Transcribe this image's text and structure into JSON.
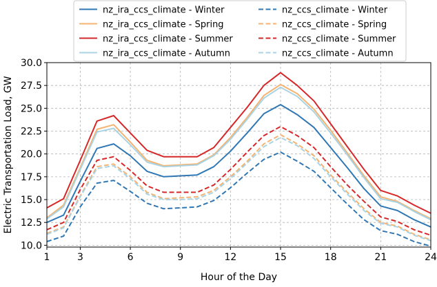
{
  "chart_data": {
    "type": "line",
    "title": "",
    "xlabel": "Hour of the Day",
    "ylabel": "Electric Transportation Load, GW",
    "xlim": [
      1,
      24
    ],
    "ylim": [
      9.8,
      30.0
    ],
    "xticks": [
      1,
      3,
      6,
      9,
      12,
      15,
      18,
      21,
      24
    ],
    "xtick_labels": [
      "1",
      "3",
      "6",
      "9",
      "12",
      "15",
      "18",
      "21",
      "24"
    ],
    "yticks": [
      10.0,
      12.5,
      15.0,
      17.5,
      20.0,
      22.5,
      25.0,
      27.5,
      30.0
    ],
    "ytick_labels": [
      "10.0",
      "12.5",
      "15.0",
      "17.5",
      "20.0",
      "22.5",
      "25.0",
      "27.5",
      "30.0"
    ],
    "grid": true,
    "grid_style": "dashed",
    "legend_position": "top-center (above plot)",
    "legend_columns": 2,
    "x": [
      1,
      2,
      3,
      4,
      5,
      6,
      7,
      8,
      9,
      10,
      11,
      12,
      13,
      14,
      15,
      16,
      17,
      18,
      19,
      20,
      21,
      22,
      23,
      24
    ],
    "series": [
      {
        "name": "nz_ira_ccs_climate - Winter",
        "color": "#2f77b4",
        "dash": "solid",
        "values": [
          12.5,
          13.3,
          17.0,
          20.6,
          21.1,
          19.8,
          18.1,
          17.5,
          17.6,
          17.7,
          18.6,
          20.3,
          22.3,
          24.4,
          25.4,
          24.3,
          22.9,
          20.7,
          18.5,
          16.2,
          14.3,
          13.8,
          12.8,
          12.0
        ]
      },
      {
        "name": "nz_ira_ccs_climate - Spring",
        "color": "#f4b370",
        "dash": "solid",
        "values": [
          13.0,
          14.4,
          18.5,
          22.7,
          23.2,
          21.3,
          19.3,
          18.7,
          18.8,
          18.9,
          19.9,
          21.8,
          24.0,
          26.4,
          27.6,
          26.6,
          24.9,
          22.6,
          20.1,
          17.6,
          15.3,
          14.8,
          13.8,
          12.9
        ]
      },
      {
        "name": "nz_ira_ccs_climate - Summer",
        "color": "#d62728",
        "dash": "solid",
        "values": [
          14.1,
          15.1,
          19.3,
          23.6,
          24.2,
          22.3,
          20.4,
          19.7,
          19.7,
          19.7,
          20.7,
          22.9,
          25.1,
          27.5,
          28.9,
          27.5,
          25.8,
          23.3,
          20.8,
          18.3,
          16.0,
          15.4,
          14.4,
          13.5
        ]
      },
      {
        "name": "nz_ira_ccs_climate - Autumn",
        "color": "#a9d3e3",
        "dash": "solid",
        "values": [
          12.9,
          14.2,
          18.3,
          22.4,
          22.8,
          21.0,
          19.1,
          18.6,
          18.7,
          18.8,
          19.8,
          21.6,
          23.8,
          26.1,
          27.3,
          26.3,
          24.6,
          22.3,
          19.9,
          17.4,
          15.1,
          14.7,
          13.7,
          12.8
        ]
      },
      {
        "name": "nz_ccs_climate - Winter",
        "color": "#2f77b4",
        "dash": "dashed",
        "values": [
          10.4,
          11.0,
          14.2,
          16.8,
          17.1,
          15.9,
          14.6,
          14.0,
          14.1,
          14.2,
          14.9,
          16.3,
          17.9,
          19.4,
          20.2,
          19.2,
          18.1,
          16.3,
          14.5,
          12.8,
          11.6,
          11.2,
          10.4,
          9.9
        ]
      },
      {
        "name": "nz_ccs_climate - Spring",
        "color": "#f4b370",
        "dash": "dashed",
        "values": [
          11.3,
          12.0,
          15.4,
          18.6,
          18.9,
          17.5,
          15.8,
          15.1,
          15.2,
          15.3,
          16.0,
          17.5,
          19.2,
          21.1,
          22.1,
          21.1,
          19.8,
          17.7,
          15.8,
          14.0,
          12.5,
          12.1,
          11.2,
          10.6
        ]
      },
      {
        "name": "nz_ccs_climate - Summer",
        "color": "#d62728",
        "dash": "dashed",
        "values": [
          11.7,
          12.5,
          16.1,
          19.3,
          19.7,
          18.2,
          16.5,
          15.8,
          15.8,
          15.8,
          16.6,
          18.3,
          20.2,
          22.0,
          23.0,
          22.0,
          20.7,
          18.6,
          16.6,
          14.8,
          13.1,
          12.6,
          11.7,
          11.1
        ]
      },
      {
        "name": "nz_ccs_climate - Autumn",
        "color": "#a9d3e3",
        "dash": "dashed",
        "values": [
          11.2,
          11.9,
          15.3,
          18.4,
          18.7,
          17.3,
          15.6,
          15.0,
          15.0,
          15.1,
          15.8,
          17.3,
          19.0,
          20.8,
          21.8,
          20.9,
          19.5,
          17.5,
          15.6,
          13.8,
          12.4,
          12.0,
          11.1,
          10.5
        ]
      }
    ]
  }
}
